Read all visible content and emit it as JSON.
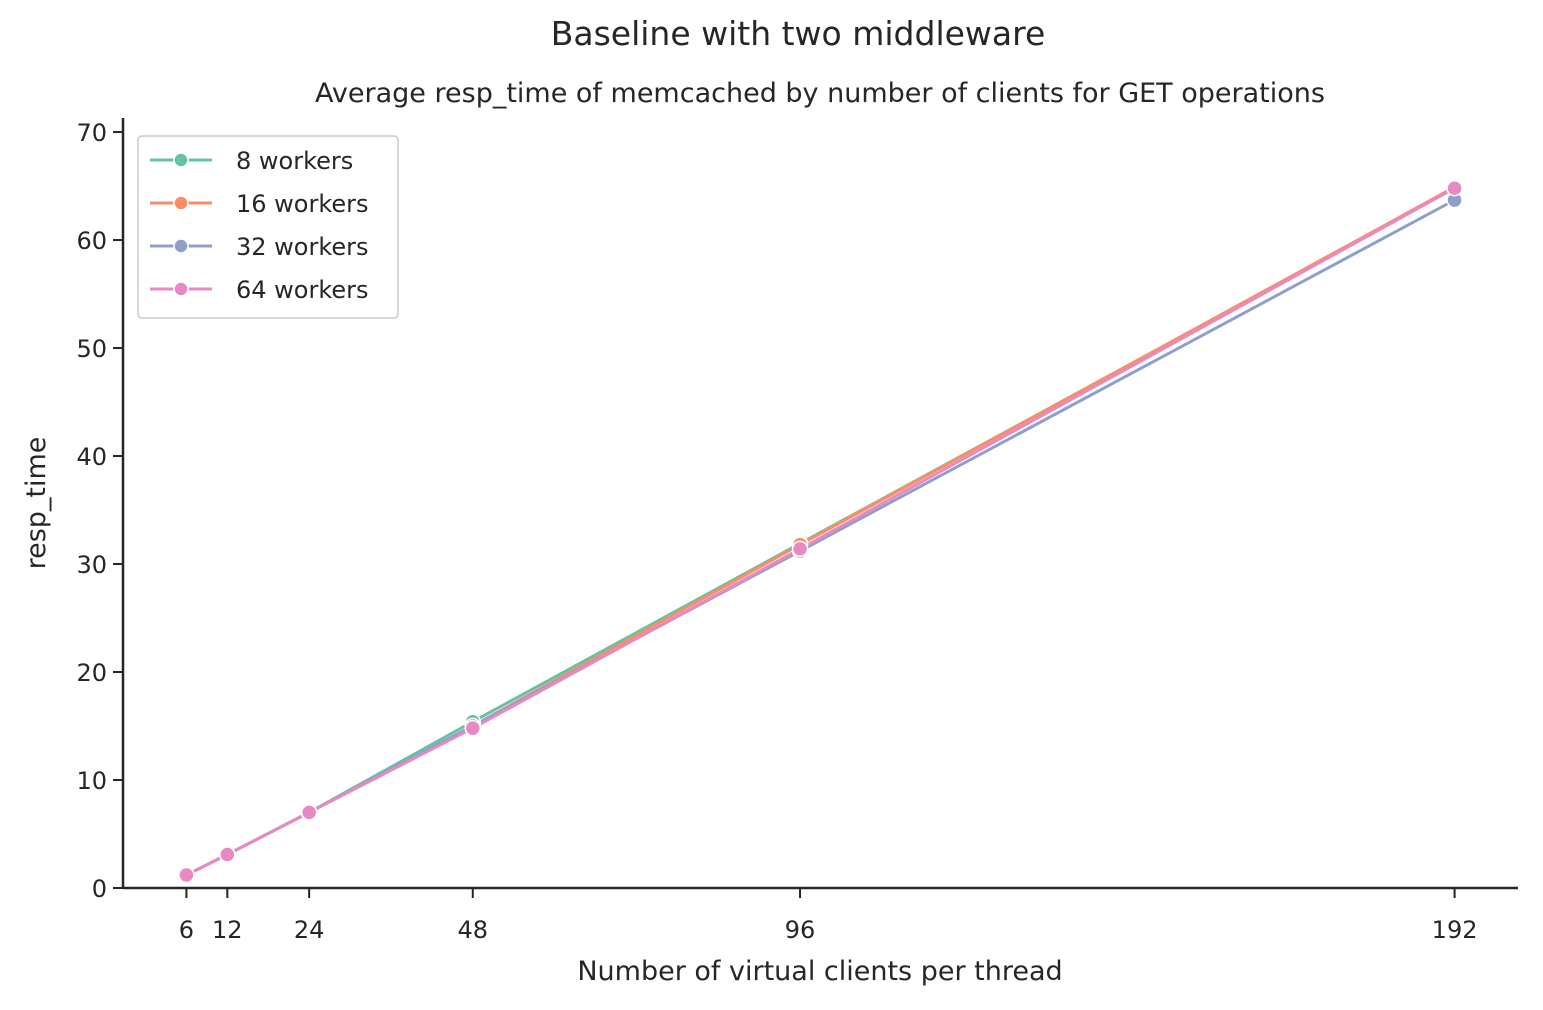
{
  "figure": {
    "suptitle": "Baseline with two middleware"
  },
  "chart_data": {
    "type": "line",
    "title": "Average resp_time of memcached by number of clients for GET operations",
    "xlabel": "Number of virtual clients per thread",
    "ylabel": "resp_time",
    "x": [
      6,
      12,
      24,
      48,
      96,
      192
    ],
    "xticks": [
      "6",
      "12",
      "24",
      "48",
      "96",
      "192"
    ],
    "xlim": [
      -3.3,
      201.3
    ],
    "ylim": [
      0,
      71.3
    ],
    "yticks": [
      "0",
      "10",
      "20",
      "30",
      "40",
      "50",
      "60",
      "70"
    ],
    "grid": false,
    "legend_position": "upper-left",
    "series": [
      {
        "name": "8 workers",
        "color": "#66c2a5",
        "values": [
          1.2,
          3.1,
          7.0,
          15.4,
          31.9,
          64.8
        ]
      },
      {
        "name": "16 workers",
        "color": "#fc8d62",
        "values": [
          1.2,
          3.1,
          7.0,
          15.0,
          31.8,
          64.9
        ]
      },
      {
        "name": "32 workers",
        "color": "#8da0cb",
        "values": [
          1.2,
          3.1,
          7.0,
          15.0,
          31.2,
          63.7
        ]
      },
      {
        "name": "64 workers",
        "color": "#e78ac3",
        "values": [
          1.2,
          3.1,
          7.0,
          14.8,
          31.4,
          64.8
        ]
      }
    ]
  }
}
